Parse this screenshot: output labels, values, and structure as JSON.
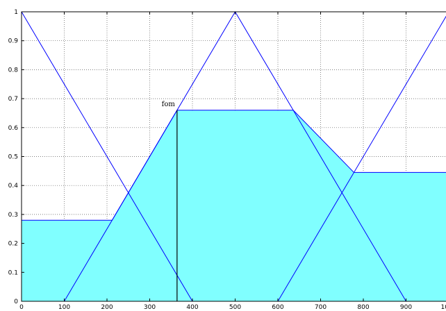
{
  "chart_data": {
    "type": "area",
    "title": "",
    "xlabel": "",
    "ylabel": "",
    "xlim": [
      0,
      1000
    ],
    "ylim": [
      0,
      1
    ],
    "grid": true,
    "xticks": [
      0,
      100,
      200,
      300,
      400,
      500,
      600,
      700,
      800,
      900,
      1000
    ],
    "yticks": [
      0,
      0.1,
      0.2,
      0.3,
      0.4,
      0.5,
      0.6,
      0.7,
      0.8,
      0.9,
      1
    ],
    "xtick_labels": [
      "0",
      "100",
      "200",
      "300",
      "400",
      "500",
      "600",
      "700",
      "800",
      "900",
      "1000"
    ],
    "ytick_labels": [
      "0",
      "0.1",
      "0.2",
      "0.3",
      "0.4",
      "0.5",
      "0.6",
      "0.7",
      "0.8",
      "0.9",
      "1"
    ],
    "membership_lines": [
      {
        "x": [
          0,
          400
        ],
        "y": [
          1,
          0
        ]
      },
      {
        "x": [
          100,
          500,
          900
        ],
        "y": [
          0,
          1,
          0
        ]
      },
      {
        "x": [
          600,
          1000
        ],
        "y": [
          0,
          1
        ]
      }
    ],
    "aggregated_area": {
      "x": [
        0,
        0,
        212,
        364,
        636,
        778,
        1000,
        1000
      ],
      "y": [
        0,
        0.28,
        0.28,
        0.66,
        0.66,
        0.445,
        0.445,
        0
      ]
    },
    "annotation": {
      "text": "fom",
      "x": 364,
      "y": 0.66
    },
    "colors": {
      "fill": "#80ffff",
      "outline": "#0000ff",
      "lines": "#0000ff",
      "marker": "#000000",
      "grid": "#555555"
    }
  }
}
